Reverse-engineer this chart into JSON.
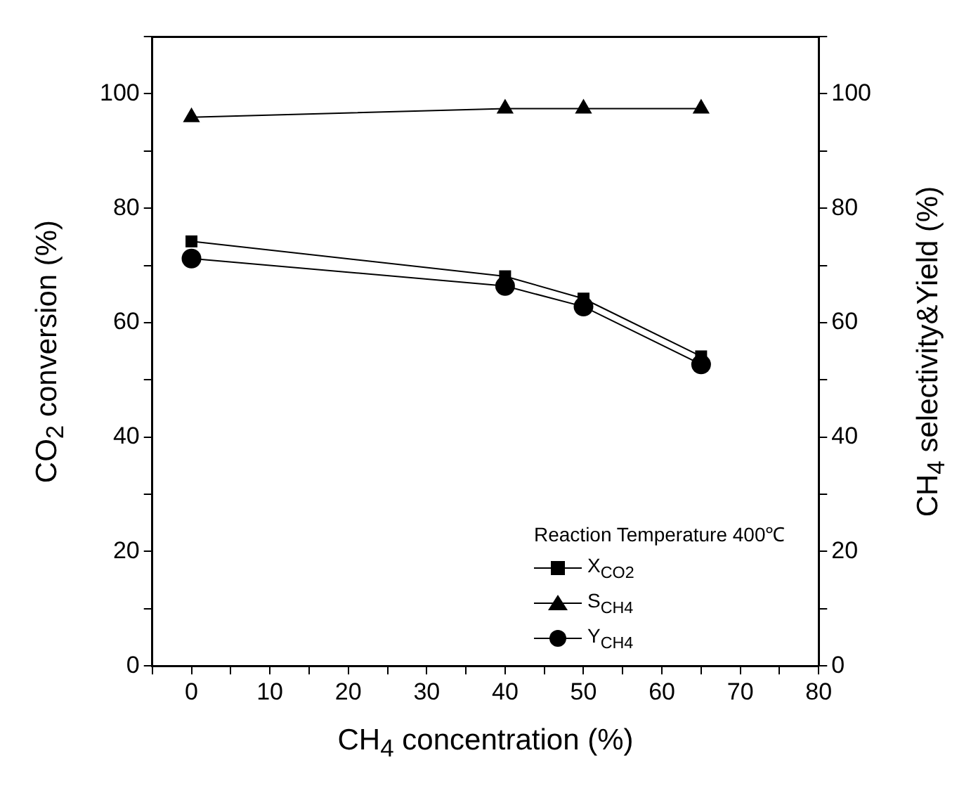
{
  "chart_data": {
    "type": "line",
    "xlabel": "CH$_{4}$ concentration (%)",
    "ylabel": "CO$_{2}$ conversion (%)",
    "y2label": "CH$_{4}$ selectivity&Yield (%)",
    "legend_title": "Reaction Temperature 400℃",
    "x": [
      0,
      40,
      50,
      65
    ],
    "series": [
      {
        "name": "X$_{CO2}$",
        "color": "#000000",
        "marker": "square",
        "values": [
          74.2,
          68.1,
          64.2,
          54.1
        ]
      },
      {
        "name": "S$_{CH4}$",
        "color": "#000000",
        "marker": "triangle",
        "values": [
          95.9,
          97.4,
          97.4,
          97.4
        ]
      },
      {
        "name": "Y$_{CH4}$",
        "color": "#000000",
        "marker": "circle",
        "values": [
          71.2,
          66.4,
          62.8,
          52.7
        ]
      }
    ],
    "xlim": [
      -5,
      80
    ],
    "xticks": [
      {
        "value": -5,
        "label": null
      },
      0,
      {
        "value": 5,
        "label": null
      },
      10,
      {
        "value": 15,
        "label": null
      },
      20,
      {
        "value": 25,
        "label": null
      },
      30,
      {
        "value": 35,
        "label": null
      },
      40,
      {
        "value": 45,
        "label": null
      },
      50,
      {
        "value": 55,
        "label": null
      },
      60,
      {
        "value": 65,
        "label": null
      },
      70,
      {
        "value": 75,
        "label": null
      },
      80
    ],
    "ylim": [
      0,
      110
    ],
    "yticks": [
      0,
      {
        "value": 10,
        "label": null
      },
      20,
      {
        "value": 30,
        "label": null
      },
      40,
      {
        "value": 50,
        "label": null
      },
      60,
      {
        "value": 70,
        "label": null
      },
      80,
      {
        "value": 90,
        "label": null
      },
      100,
      {
        "value": 110,
        "label": null
      }
    ],
    "y2lim": [
      0,
      110
    ],
    "y2ticks": [
      0,
      {
        "value": 10,
        "label": null
      },
      20,
      {
        "value": 30,
        "label": null
      },
      40,
      {
        "value": 50,
        "label": null
      },
      60,
      {
        "value": 70,
        "label": null
      },
      80,
      {
        "value": 90,
        "label": null
      },
      100,
      {
        "value": 110,
        "label": null
      }
    ],
    "grid": false,
    "legend": "bottom right"
  }
}
